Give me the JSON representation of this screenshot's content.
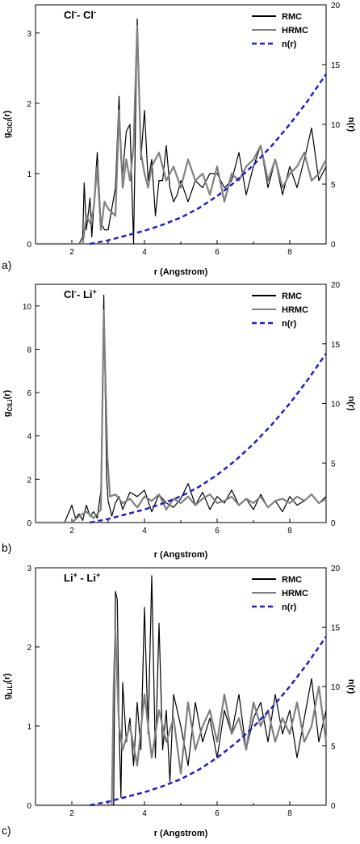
{
  "chart_data": [
    {
      "type": "line",
      "panel_label": "a)",
      "title": "Cl⁻- Cl⁻",
      "title_parts": {
        "a": "Cl",
        "a_sup": "-",
        "sep": "- ",
        "b": "Cl",
        "b_sup": "-"
      },
      "xlabel": "r (Angstrom)",
      "ylabel": {
        "base": "g",
        "sub": "ClCl",
        "suffix": "(r)"
      },
      "y2label": "n(r)",
      "xlim": [
        1,
        9
      ],
      "ylim": [
        0,
        3.4
      ],
      "y2lim": [
        0,
        20
      ],
      "xticks": [
        2,
        4,
        6,
        8
      ],
      "yticks": [
        0,
        1,
        2,
        3
      ],
      "y2ticks": [
        0,
        5,
        10,
        15,
        20
      ],
      "legend": {
        "position": "top-right",
        "entries": [
          "RMC",
          "HRMC",
          "n(r)"
        ]
      },
      "series": [
        {
          "name": "RMC",
          "color": "#000000",
          "x": [
            1.0,
            2.2,
            2.3,
            2.34,
            2.4,
            2.5,
            2.55,
            2.7,
            2.8,
            2.9,
            3.0,
            3.1,
            3.2,
            3.3,
            3.35,
            3.4,
            3.5,
            3.6,
            3.7,
            3.8,
            3.9,
            4.0,
            4.1,
            4.2,
            4.3,
            4.4,
            4.5,
            4.6,
            4.7,
            4.8,
            4.9,
            5.0,
            5.2,
            5.4,
            5.6,
            5.8,
            6.0,
            6.2,
            6.4,
            6.6,
            6.8,
            7.0,
            7.2,
            7.4,
            7.6,
            7.8,
            8.0,
            8.2,
            8.4,
            8.6,
            8.8,
            9.0
          ],
          "y": [
            0,
            0,
            0.1,
            0.87,
            0.2,
            0.65,
            0.1,
            1.3,
            0.3,
            0.2,
            0.2,
            0.5,
            0.8,
            2.1,
            1.2,
            1.0,
            1.6,
            1.7,
            0.0,
            3.2,
            1.2,
            1.9,
            0.9,
            1.2,
            0.4,
            0.9,
            0.9,
            1.4,
            0.8,
            0.6,
            0.7,
            0.9,
            0.6,
            0.9,
            0.8,
            1.0,
            1.0,
            0.8,
            0.9,
            1.3,
            0.7,
            1.1,
            1.4,
            0.8,
            1.2,
            0.7,
            1.1,
            0.8,
            1.2,
            1.65,
            0.9,
            1.1
          ]
        },
        {
          "name": "HRMC",
          "color": "#808080",
          "x": [
            1.0,
            2.3,
            2.4,
            2.5,
            2.6,
            2.7,
            2.8,
            2.9,
            3.0,
            3.2,
            3.3,
            3.4,
            3.5,
            3.6,
            3.7,
            3.8,
            3.9,
            4.0,
            4.1,
            4.2,
            4.4,
            4.6,
            4.8,
            5.0,
            5.2,
            5.4,
            5.6,
            5.8,
            6.0,
            6.2,
            6.4,
            6.6,
            6.8,
            7.0,
            7.2,
            7.4,
            7.6,
            7.8,
            8.0,
            8.2,
            8.4,
            8.6,
            8.8,
            9.0
          ],
          "y": [
            0,
            0,
            0.4,
            0.3,
            0.5,
            1.1,
            0.2,
            0.6,
            0.5,
            0.4,
            1.9,
            0.8,
            1.2,
            0.9,
            1.4,
            3.1,
            1.3,
            1.0,
            0.8,
            1.1,
            1.3,
            0.9,
            1.1,
            0.8,
            1.2,
            0.9,
            1.0,
            0.7,
            1.1,
            0.6,
            1.0,
            0.9,
            1.1,
            1.2,
            1.4,
            0.9,
            1.2,
            0.8,
            1.0,
            1.1,
            1.3,
            0.9,
            1.0,
            1.2
          ]
        },
        {
          "name": "n(r)",
          "color": "#1f1fcc",
          "dashed": true,
          "axis": "right",
          "x": [
            2.5,
            3.0,
            3.5,
            4.0,
            4.5,
            5.0,
            5.5,
            6.0,
            6.5,
            7.0,
            7.5,
            8.0,
            8.5,
            9.0
          ],
          "y": [
            0,
            0.3,
            0.7,
            1.1,
            1.6,
            2.2,
            3.0,
            4.0,
            5.2,
            6.6,
            8.2,
            10.0,
            12.0,
            14.2
          ]
        }
      ]
    },
    {
      "type": "line",
      "panel_label": "b)",
      "title": "Cl⁻- Li⁺",
      "title_parts": {
        "a": "Cl",
        "a_sup": "-",
        "sep": "- ",
        "b": "Li",
        "b_sup": "+"
      },
      "xlabel": "r (Angstrom)",
      "ylabel": {
        "base": "g",
        "sub": "ClLi",
        "suffix": "(r)"
      },
      "y2label": "n(r)",
      "xlim": [
        1,
        9
      ],
      "ylim": [
        0,
        11
      ],
      "y2lim": [
        0,
        20
      ],
      "xticks": [
        2,
        4,
        6,
        8
      ],
      "yticks": [
        0,
        2,
        4,
        6,
        8,
        10
      ],
      "y2ticks": [
        0,
        5,
        10,
        15,
        20
      ],
      "legend": {
        "position": "top-right",
        "entries": [
          "RMC",
          "HRMC",
          "n(r)"
        ]
      },
      "series": [
        {
          "name": "RMC",
          "color": "#000000",
          "x": [
            1.0,
            1.8,
            2.0,
            2.1,
            2.2,
            2.3,
            2.4,
            2.5,
            2.6,
            2.7,
            2.8,
            2.88,
            2.92,
            2.96,
            3.0,
            3.1,
            3.2,
            3.3,
            3.4,
            3.6,
            3.8,
            4.0,
            4.2,
            4.4,
            4.6,
            4.8,
            5.0,
            5.2,
            5.4,
            5.6,
            5.8,
            6.0,
            6.2,
            6.4,
            6.6,
            6.8,
            7.0,
            7.2,
            7.4,
            7.6,
            7.8,
            8.0,
            8.2,
            8.4,
            8.6,
            8.8,
            9.0
          ],
          "y": [
            0,
            0,
            0.8,
            0.2,
            0.4,
            0.1,
            0.8,
            0.3,
            0.5,
            0.2,
            1.5,
            10.5,
            6.0,
            2.0,
            1.0,
            0.3,
            0.9,
            1.2,
            0.6,
            1.4,
            1.2,
            1.5,
            0.5,
            1.3,
            0.9,
            0.7,
            1.1,
            1.8,
            0.8,
            1.4,
            0.6,
            1.2,
            0.9,
            1.5,
            0.8,
            1.1,
            0.6,
            1.3,
            0.7,
            1.0,
            0.5,
            1.2,
            0.8,
            1.0,
            1.3,
            0.9,
            1.2
          ]
        },
        {
          "name": "HRMC",
          "color": "#808080",
          "x": [
            1.0,
            2.0,
            2.2,
            2.4,
            2.6,
            2.8,
            2.88,
            2.93,
            2.98,
            3.05,
            3.2,
            3.4,
            3.6,
            3.8,
            4.0,
            4.2,
            4.4,
            4.6,
            4.8,
            5.0,
            5.2,
            5.4,
            5.6,
            5.8,
            6.0,
            6.2,
            6.4,
            6.6,
            6.8,
            7.0,
            7.2,
            7.4,
            7.6,
            7.8,
            8.0,
            8.2,
            8.4,
            8.6,
            8.8,
            9.0
          ],
          "y": [
            0,
            0,
            0.3,
            0.5,
            0.2,
            0.6,
            9.8,
            6.2,
            3.0,
            1.2,
            1.3,
            0.9,
            1.1,
            0.7,
            1.2,
            1.0,
            1.3,
            0.6,
            1.1,
            0.9,
            1.2,
            0.8,
            1.1,
            1.3,
            0.9,
            1.0,
            1.2,
            0.8,
            1.1,
            0.9,
            1.2,
            0.7,
            1.0,
            1.1,
            0.9,
            1.2,
            1.0,
            1.3,
            0.9,
            1.1
          ]
        },
        {
          "name": "n(r)",
          "color": "#1f1fcc",
          "dashed": true,
          "axis": "right",
          "x": [
            2.5,
            3.0,
            3.5,
            4.0,
            4.5,
            5.0,
            5.5,
            6.0,
            6.5,
            7.0,
            7.5,
            8.0,
            8.5,
            9.0
          ],
          "y": [
            0,
            0.3,
            0.7,
            1.1,
            1.6,
            2.2,
            3.0,
            4.0,
            5.2,
            6.6,
            8.2,
            10.0,
            12.0,
            14.2
          ]
        }
      ]
    },
    {
      "type": "line",
      "panel_label": "c)",
      "title": "Li⁺ - Li⁺",
      "title_parts": {
        "a": "Li",
        "a_sup": "+",
        "sep": " - ",
        "b": "Li",
        "b_sup": "+"
      },
      "xlabel": "r (Angstrom)",
      "ylabel": {
        "base": "g",
        "sub": "LiLi",
        "suffix": "(r)"
      },
      "y2label": "n(r)",
      "xlim": [
        1,
        9
      ],
      "ylim": [
        0,
        3
      ],
      "y2lim": [
        0,
        20
      ],
      "xticks": [
        2,
        4,
        6,
        8
      ],
      "yticks": [
        0,
        1,
        2,
        3
      ],
      "y2ticks": [
        0,
        5,
        10,
        15,
        20
      ],
      "legend": {
        "position": "top-right",
        "entries": [
          "RMC",
          "HRMC",
          "n(r)"
        ]
      },
      "series": [
        {
          "name": "RMC",
          "color": "#000000",
          "x": [
            1.0,
            3.15,
            3.2,
            3.25,
            3.3,
            3.35,
            3.4,
            3.5,
            3.6,
            3.7,
            3.8,
            3.9,
            4.0,
            4.1,
            4.2,
            4.3,
            4.4,
            4.5,
            4.6,
            4.7,
            4.8,
            5.0,
            5.2,
            5.4,
            5.6,
            5.8,
            6.0,
            6.2,
            6.4,
            6.6,
            6.8,
            7.0,
            7.2,
            7.4,
            7.6,
            7.8,
            8.0,
            8.2,
            8.4,
            8.6,
            8.8,
            9.0
          ],
          "y": [
            0,
            0,
            2.7,
            2.6,
            1.0,
            0.1,
            1.55,
            0.8,
            1.1,
            0.5,
            1.3,
            0.7,
            2.5,
            0.9,
            2.9,
            0.6,
            2.3,
            0.7,
            1.2,
            0.3,
            1.4,
            1.0,
            0.5,
            1.3,
            0.8,
            1.1,
            0.6,
            1.2,
            0.9,
            1.4,
            0.7,
            1.1,
            1.3,
            0.8,
            1.4,
            0.9,
            1.2,
            0.6,
            1.1,
            1.6,
            0.8,
            1.2
          ]
        },
        {
          "name": "HRMC",
          "color": "#808080",
          "x": [
            1.0,
            3.1,
            3.15,
            3.2,
            3.3,
            3.4,
            3.6,
            3.8,
            4.0,
            4.2,
            4.4,
            4.6,
            4.8,
            5.0,
            5.2,
            5.4,
            5.6,
            5.8,
            6.0,
            6.2,
            6.4,
            6.6,
            6.8,
            7.0,
            7.2,
            7.4,
            7.6,
            7.8,
            8.0,
            8.2,
            8.4,
            8.6,
            8.8,
            9.0
          ],
          "y": [
            0,
            0,
            1.5,
            2.2,
            1.0,
            0.7,
            1.0,
            0.5,
            1.4,
            0.6,
            1.2,
            0.8,
            1.1,
            0.4,
            1.3,
            0.7,
            1.0,
            1.2,
            0.8,
            1.4,
            0.9,
            1.1,
            0.7,
            1.3,
            1.0,
            1.2,
            0.8,
            1.1,
            0.9,
            1.3,
            0.8,
            1.0,
            1.5,
            0.8
          ]
        },
        {
          "name": "n(r)",
          "color": "#1f1fcc",
          "dashed": true,
          "axis": "right",
          "x": [
            2.5,
            3.0,
            3.5,
            4.0,
            4.5,
            5.0,
            5.5,
            6.0,
            6.5,
            7.0,
            7.5,
            8.0,
            8.5,
            9.0
          ],
          "y": [
            0,
            0.3,
            0.7,
            1.1,
            1.6,
            2.2,
            3.0,
            4.0,
            5.2,
            6.6,
            8.2,
            10.0,
            12.0,
            14.2
          ]
        }
      ]
    }
  ]
}
